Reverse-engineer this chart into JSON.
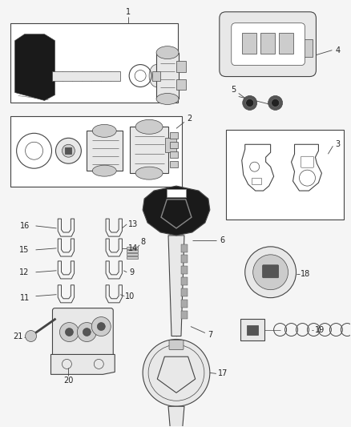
{
  "bg_color": "#f5f5f5",
  "fig_width": 4.38,
  "fig_height": 5.33,
  "dpi": 100,
  "line_color": "#444444",
  "label_color": "#222222",
  "label_fontsize": 7.0,
  "lw": 0.8
}
